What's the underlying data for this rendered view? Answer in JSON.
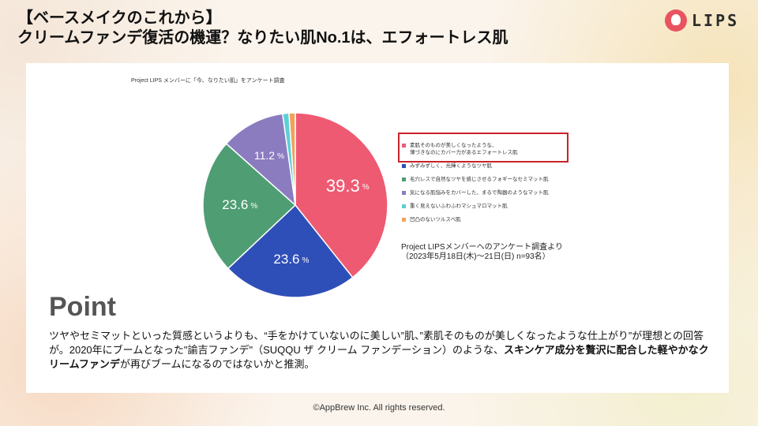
{
  "header": {
    "title_line1": "【ベースメイクのこれから】",
    "title_line2": "クリームファンデ復活の機運？なりたい肌No.1は、エフォートレス肌"
  },
  "logo": {
    "text": "LIPS"
  },
  "chart_data": {
    "type": "pie",
    "title": "Project LIPS メンバーに「今、なりたい肌」をアンケート調査",
    "categories": [
      "素肌そのものが美しくなったような、薄づきなのにカバー力があるエフォートレス肌",
      "みずみずしく、光輝くようなツヤ肌",
      "毛穴レスで自然なツヤを感じさせるフォギーなセミマット肌",
      "気になる肌悩みをカバーした、まるで陶器のようなマット肌",
      "重く見えないふわふわマシュマロマット肌",
      "凹凸のないツルスベ肌"
    ],
    "values": [
      39.3,
      23.6,
      23.6,
      11.2,
      1.1,
      1.1
    ],
    "value_labels": [
      "39.3",
      "23.6",
      "23.6",
      "11.2",
      "",
      ""
    ],
    "unit": "%",
    "colors": [
      "#ee5a72",
      "#2f4fb8",
      "#4f9e73",
      "#8b7cc0",
      "#5ccfd6",
      "#f0a25a"
    ],
    "legend_placement": "right",
    "highlighted_index": 0
  },
  "legend_lines": [
    [
      "素肌そのものが美しくなったような、",
      "薄づきなのにカバー力があるエフォートレス肌"
    ],
    [
      "みずみずしく、光輝くようなツヤ肌"
    ],
    [
      "毛穴レスで自然なツヤを感じさせるフォギーなセミマット肌"
    ],
    [
      "気になる肌悩みをカバーした、まるで陶器のようなマット肌"
    ],
    [
      "重く見えないふわふわマシュマロマット肌"
    ],
    [
      "凹凸のないツルスベ肌"
    ]
  ],
  "source": {
    "line1": "Project LIPSメンバーへのアンケート調査より",
    "line2": "（2023年5月18日(木)〜21日(日) n=93名）"
  },
  "point": {
    "heading": "Point",
    "text_a": "ツヤやセミマットといった質感というよりも、“手をかけていないのに美しい”肌、”素肌そのものが美しくなったような仕上がり”が理想との回答が。2020年にブームとなった\"諭吉ファンデ\"（SUQQU ザ クリーム ファンデーション）のような、",
    "bold_a": "スキンケア成分を贅沢に配合した軽やかなクリームファンデ",
    "text_b": "が再びブームになるのではないかと推測。"
  },
  "footer": {
    "copyright": "©AppBrew Inc. All rights reserved."
  }
}
